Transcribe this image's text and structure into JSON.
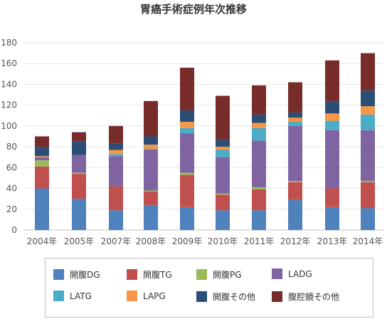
{
  "chart_data": {
    "type": "bar",
    "stacked": true,
    "title": "胃癌手術症例年次推移",
    "categories": [
      "2004年",
      "2005年",
      "2007年",
      "2008年",
      "2009年",
      "2010年",
      "2011年",
      "2012年",
      "2013年",
      "2014年"
    ],
    "ylim": [
      0,
      180
    ],
    "yticks": [
      0,
      20,
      40,
      60,
      80,
      100,
      120,
      140,
      160,
      180
    ],
    "grid": true,
    "legend_position": "bottom",
    "series": [
      {
        "name": "開腹DG",
        "color": "#4f81bd",
        "values": [
          40,
          30,
          19,
          24,
          22,
          19,
          19,
          29,
          22,
          21
        ]
      },
      {
        "name": "開腹TG",
        "color": "#c0504d",
        "values": [
          21,
          24,
          23,
          13,
          31,
          15,
          20,
          17,
          18,
          25
        ]
      },
      {
        "name": "開腹PG",
        "color": "#9bbb59",
        "values": [
          6,
          1,
          0,
          1,
          2,
          1,
          2,
          1,
          0,
          1
        ]
      },
      {
        "name": "LADG",
        "color": "#8064a2",
        "values": [
          3,
          17,
          29,
          39,
          38,
          35,
          45,
          53,
          56,
          49
        ]
      },
      {
        "name": "LATG",
        "color": "#4bacc6",
        "values": [
          0,
          0,
          2,
          1,
          5,
          7,
          12,
          4,
          9,
          15
        ]
      },
      {
        "name": "LAPG",
        "color": "#f79646",
        "values": [
          1,
          0,
          4,
          4,
          6,
          3,
          5,
          4,
          7,
          8
        ]
      },
      {
        "name": "開腹その他",
        "color": "#2c4d75",
        "values": [
          9,
          13,
          6,
          8,
          11,
          7,
          8,
          5,
          12,
          15
        ]
      },
      {
        "name": "腹腔鏡その他",
        "color": "#772c2a",
        "values": [
          10,
          9,
          17,
          34,
          41,
          42,
          28,
          29,
          39,
          36
        ]
      }
    ]
  }
}
